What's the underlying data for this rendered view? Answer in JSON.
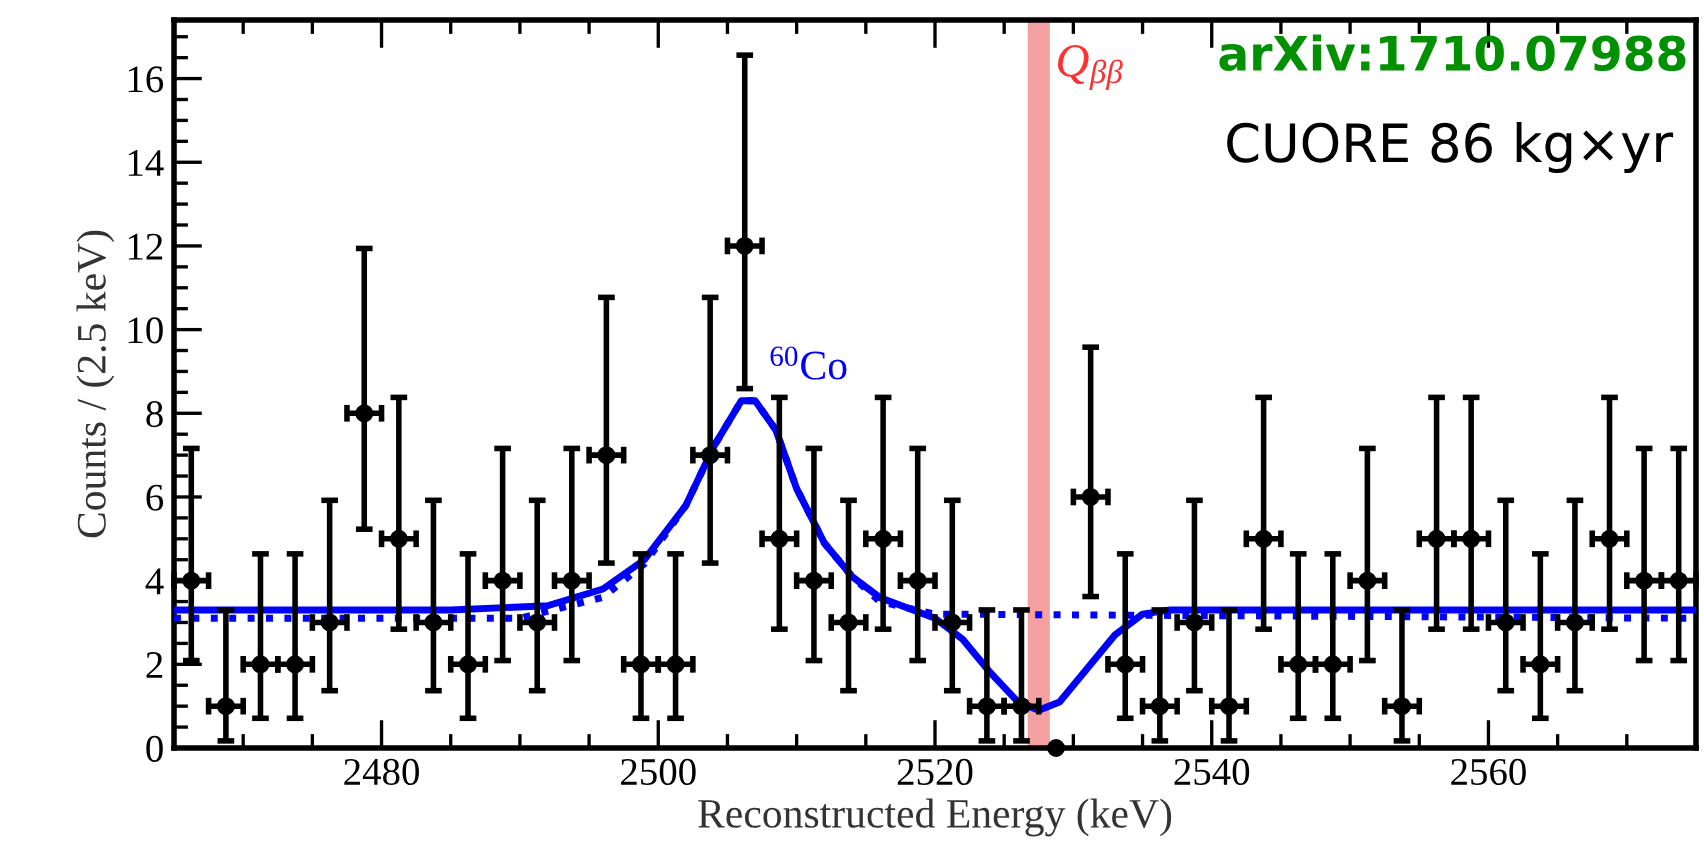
{
  "chart_data": {
    "type": "scatter",
    "xlabel": "Reconstructed Energy (keV)",
    "ylabel": "Counts / (2.5 keV)",
    "xlim": [
      2465,
      2575
    ],
    "ylim": [
      0,
      17.4
    ],
    "xticks": [
      2480,
      2500,
      2520,
      2540,
      2560
    ],
    "yticks": [
      0,
      2,
      4,
      6,
      8,
      10,
      12,
      14,
      16
    ],
    "grid": false,
    "legend": false,
    "series": [
      {
        "type": "scatter",
        "color": "#000000",
        "x": [
          2466.25,
          2468.75,
          2471.25,
          2473.75,
          2476.25,
          2478.75,
          2481.25,
          2483.75,
          2486.25,
          2488.75,
          2491.25,
          2493.75,
          2496.25,
          2498.75,
          2501.25,
          2503.75,
          2506.25,
          2508.75,
          2511.25,
          2513.75,
          2516.25,
          2518.75,
          2521.25,
          2523.75,
          2526.25,
          2528.75,
          2531.25,
          2533.75,
          2536.25,
          2538.75,
          2541.25,
          2543.75,
          2546.25,
          2548.75,
          2551.25,
          2553.75,
          2556.25,
          2558.75,
          2561.25,
          2563.75,
          2566.25,
          2568.75,
          2571.25,
          2573.75
        ],
        "values": [
          4,
          1,
          2,
          2,
          3,
          8,
          5,
          3,
          2,
          4,
          3,
          4,
          7,
          2,
          2,
          7,
          12,
          5,
          4,
          3,
          5,
          4,
          3,
          1,
          1,
          0,
          6,
          2,
          1,
          3,
          1,
          5,
          2,
          2,
          4,
          1,
          5,
          5,
          3,
          2,
          3,
          5,
          4,
          4
        ],
        "marker": "circle",
        "errors": [
          [
            2.09,
            7.16
          ],
          [
            0.17,
            3.3
          ],
          [
            0.71,
            4.64
          ],
          [
            0.71,
            4.64
          ],
          [
            1.37,
            5.92
          ],
          [
            5.23,
            11.94
          ],
          [
            2.84,
            8.38
          ],
          [
            1.37,
            5.92
          ],
          [
            0.71,
            4.64
          ],
          [
            2.09,
            7.16
          ],
          [
            1.37,
            5.92
          ],
          [
            2.09,
            7.16
          ],
          [
            4.42,
            10.77
          ],
          [
            0.71,
            4.64
          ],
          [
            0.71,
            4.64
          ],
          [
            4.42,
            10.77
          ],
          [
            8.59,
            16.56
          ],
          [
            2.84,
            8.38
          ],
          [
            2.09,
            7.16
          ],
          [
            1.37,
            5.92
          ],
          [
            2.84,
            8.38
          ],
          [
            2.09,
            7.16
          ],
          [
            1.37,
            5.92
          ],
          [
            0.17,
            3.3
          ],
          [
            0.17,
            3.3
          ],
          null,
          [
            3.62,
            9.58
          ],
          [
            0.71,
            4.64
          ],
          [
            0.17,
            3.3
          ],
          [
            1.37,
            5.92
          ],
          [
            0.17,
            3.3
          ],
          [
            2.84,
            8.38
          ],
          [
            0.71,
            4.64
          ],
          [
            0.71,
            4.64
          ],
          [
            2.09,
            7.16
          ],
          [
            0.17,
            3.3
          ],
          [
            2.84,
            8.38
          ],
          [
            2.84,
            8.38
          ],
          [
            1.37,
            5.92
          ],
          [
            0.71,
            4.64
          ],
          [
            1.37,
            5.92
          ],
          [
            2.84,
            8.38
          ],
          [
            2.09,
            7.16
          ],
          [
            2.09,
            7.16
          ]
        ],
        "xerrors": [
          1.25,
          1.25,
          1.25,
          1.25,
          1.25,
          1.25,
          1.25,
          1.25,
          1.25,
          1.25,
          1.25,
          1.25,
          1.25,
          1.25,
          1.25,
          1.25,
          1.25,
          1.25,
          1.25,
          1.25,
          1.25,
          1.25,
          1.25,
          1.25,
          1.25,
          null,
          1.25,
          1.25,
          1.25,
          1.25,
          1.25,
          1.25,
          1.25,
          1.25,
          1.25,
          1.25,
          1.25,
          1.25,
          1.25,
          1.25,
          1.25,
          1.25,
          1.25,
          1.25
        ]
      },
      {
        "type": "line",
        "color": "#0000ff",
        "line_style": "solid",
        "x": [
          2465,
          2485,
          2492,
          2496,
          2499,
          2502,
          2504,
          2506,
          2507,
          2508.5,
          2510,
          2512,
          2514,
          2516,
          2520,
          2522,
          2524,
          2526,
          2527.5,
          2529,
          2531,
          2533,
          2535,
          2537,
          2575
        ],
        "values": [
          3.3,
          3.3,
          3.4,
          3.8,
          4.5,
          5.8,
          7.2,
          8.3,
          8.3,
          7.6,
          6.2,
          4.9,
          4.1,
          3.6,
          3.1,
          2.6,
          1.8,
          1.1,
          0.9,
          1.1,
          1.9,
          2.7,
          3.2,
          3.3,
          3.3
        ]
      },
      {
        "type": "line",
        "color": "#0000ff",
        "line_style": "dotted",
        "x": [
          2465,
          2490,
          2496,
          2499,
          2502,
          2504,
          2506,
          2507,
          2508.5,
          2510,
          2512,
          2514,
          2516,
          2520,
          2575
        ],
        "values": [
          3.1,
          3.1,
          3.6,
          4.4,
          5.8,
          7.2,
          8.3,
          8.3,
          7.6,
          6.2,
          4.9,
          4.1,
          3.5,
          3.2,
          3.1
        ]
      }
    ],
    "bands": [
      {
        "axis": "x",
        "from": 2526.7,
        "to": 2528.3,
        "label": "Q$_{ββ}$",
        "color": "#f4a0a0"
      }
    ],
    "annotations": [
      {
        "text": "$^{60}$Co",
        "x": 2508,
        "y": 8.6
      },
      "arXiv:1710.07988",
      "CUORE 86 kg×yr"
    ]
  }
}
